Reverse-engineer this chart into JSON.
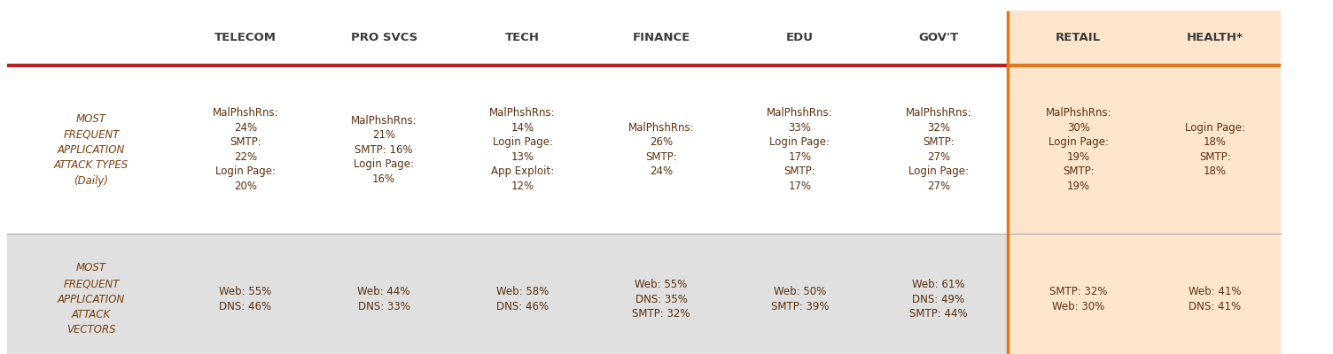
{
  "columns": [
    "",
    "TELECOM",
    "PRO SVCS",
    "TECH",
    "FINANCE",
    "EDU",
    "GOV'T",
    "RETAIL",
    "HEALTH*"
  ],
  "header_bg_normal": "#ffffff",
  "highlight_bg": "#fde6cc",
  "header_text_color": "#3c3c3c",
  "row1_label": "MOST\nFREQUENT\nAPPLICATION\nATTACK TYPES\n(Daily)",
  "row2_label": "MOST\nFREQUENT\nAPPLICATION\nATTACK\nVECTORS",
  "row1_bg": "#ffffff",
  "row2_bg": "#e0e0e0",
  "separator_color": "#b22222",
  "highlight_border_color": "#e07820",
  "row1_data": [
    "MalPhshRns:\n24%\nSMTP:\n22%\nLogin Page:\n20%",
    "MalPhshRns:\n21%\nSMTP: 16%\nLogin Page:\n16%",
    "MalPhshRns:\n14%\nLogin Page:\n13%\nApp Exploit:\n12%",
    "MalPhshRns:\n26%\nSMTP:\n24%",
    "MalPhshRns:\n33%\nLogin Page:\n17%\nSMTP:\n17%",
    "MalPhshRns:\n32%\nSMTP:\n27%\nLogin Page:\n27%",
    "MalPhshRns:\n30%\nLogin Page:\n19%\nSMTP:\n19%",
    "Login Page:\n18%\nSMTP:\n18%"
  ],
  "row2_data": [
    "Web: 55%\nDNS: 46%",
    "Web: 44%\nDNS: 33%",
    "Web: 58%\nDNS: 46%",
    "Web: 55%\nDNS: 35%\nSMTP: 32%",
    "Web: 50%\nSMTP: 39%",
    "Web: 61%\nDNS: 49%\nSMTP: 44%",
    "SMTP: 32%\nWeb: 30%",
    "Web: 41%\nDNS: 41%"
  ],
  "text_color": "#5a3010",
  "label_text_color": "#7a4010",
  "cell_text_size": 8.5,
  "header_text_size": 9.5,
  "label_text_size": 8.5
}
